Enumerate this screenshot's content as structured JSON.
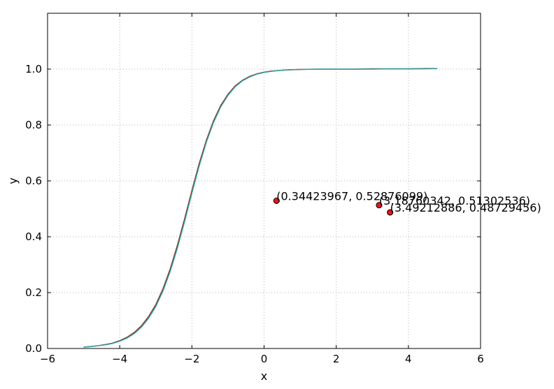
{
  "chart_data": {
    "type": "line",
    "xlabel": "x",
    "ylabel": "y",
    "xlim": [
      -6,
      6
    ],
    "ylim": [
      0,
      1.2
    ],
    "grid": true,
    "xticks": [
      -6,
      -4,
      -2,
      0,
      2,
      4,
      6
    ],
    "xtick_labels": [
      "−6",
      "−4",
      "−2",
      "0",
      "2",
      "4",
      "6"
    ],
    "yticks": [
      0.0,
      0.2,
      0.4,
      0.6,
      0.8,
      1.0
    ],
    "ytick_labels": [
      "0.0",
      "0.2",
      "0.4",
      "0.6",
      "0.8",
      "1.0"
    ],
    "series": [
      {
        "color": "#8a3a2a",
        "x": [
          -5.0,
          -4.8,
          -4.6,
          -4.4,
          -4.2,
          -4.0,
          -3.8,
          -3.6,
          -3.4,
          -3.2,
          -3.0,
          -2.8,
          -2.6,
          -2.4,
          -2.2,
          -2.0,
          -1.8,
          -1.6,
          -1.4,
          -1.2,
          -1.0,
          -0.8,
          -0.6,
          -0.4,
          -0.2,
          0.0,
          0.2,
          0.4,
          0.6,
          0.8,
          1.0,
          1.5,
          2.0,
          2.5,
          3.0,
          3.5,
          4.0,
          4.5,
          4.8
        ],
        "y": [
          0.005,
          0.007,
          0.01,
          0.014,
          0.019,
          0.028,
          0.04,
          0.057,
          0.081,
          0.114,
          0.157,
          0.214,
          0.285,
          0.37,
          0.465,
          0.565,
          0.661,
          0.745,
          0.815,
          0.87,
          0.91,
          0.94,
          0.96,
          0.974,
          0.983,
          0.989,
          0.993,
          0.995,
          0.997,
          0.998,
          0.999,
          1.0,
          1.0,
          1.0,
          1.001,
          1.001,
          1.001,
          1.002,
          1.002
        ]
      },
      {
        "color": "#2ca3a3",
        "x": [
          -5.0,
          -4.8,
          -4.6,
          -4.4,
          -4.2,
          -4.0,
          -3.8,
          -3.6,
          -3.4,
          -3.2,
          -3.0,
          -2.8,
          -2.6,
          -2.4,
          -2.2,
          -2.0,
          -1.8,
          -1.6,
          -1.4,
          -1.2,
          -1.0,
          -0.8,
          -0.6,
          -0.4,
          -0.2,
          0.0,
          0.2,
          0.4,
          0.6,
          0.8,
          1.0,
          1.5,
          2.0,
          2.5,
          3.0,
          3.5,
          4.0,
          4.5,
          4.8
        ],
        "y": [
          0.005,
          0.007,
          0.01,
          0.013,
          0.018,
          0.026,
          0.037,
          0.053,
          0.076,
          0.108,
          0.15,
          0.206,
          0.276,
          0.36,
          0.455,
          0.556,
          0.652,
          0.738,
          0.809,
          0.865,
          0.906,
          0.937,
          0.958,
          0.972,
          0.982,
          0.988,
          0.992,
          0.995,
          0.997,
          0.998,
          0.999,
          1.0,
          1.0,
          1.0,
          1.0,
          1.001,
          1.001,
          1.001,
          1.002
        ]
      }
    ],
    "points": {
      "color": "#e8131b",
      "items": [
        {
          "x": 0.34423967,
          "y": 0.52876099,
          "label": "(0.34423967, 0.52876099)"
        },
        {
          "x": 3.18760342,
          "y": 0.51302536,
          "label": "(3.18760342, 0.51302536)"
        },
        {
          "x": 3.49212886,
          "y": 0.48729456,
          "label": "(3.49212886, 0.48729456)"
        }
      ]
    }
  }
}
